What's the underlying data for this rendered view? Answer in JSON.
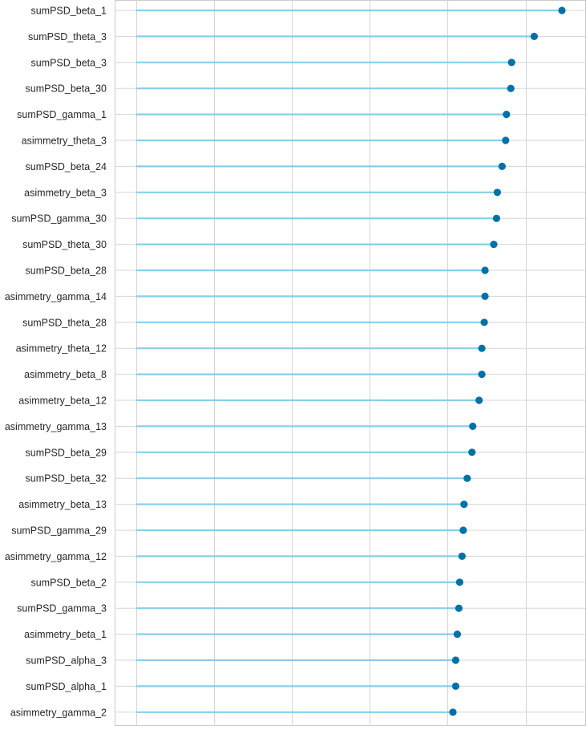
{
  "chart_data": {
    "type": "lollipop",
    "orientation": "horizontal",
    "title": "",
    "xlabel": "",
    "ylabel": "",
    "xlim": [
      0,
      1
    ],
    "grid": true,
    "colors": {
      "stem": "#87ceeb",
      "marker": "#0072a8",
      "grid": "#d5d5d5",
      "frame": "#cccccc",
      "label": "#262626"
    },
    "categories": [
      "sumPSD_beta_1",
      "sumPSD_theta_3",
      "sumPSD_beta_3",
      "sumPSD_beta_30",
      "sumPSD_gamma_1",
      "asimmetry_theta_3",
      "sumPSD_beta_24",
      "asimmetry_beta_3",
      "sumPSD_gamma_30",
      "sumPSD_theta_30",
      "sumPSD_beta_28",
      "asimmetry_gamma_14",
      "sumPSD_theta_28",
      "asimmetry_theta_12",
      "asimmetry_beta_8",
      "asimmetry_beta_12",
      "asimmetry_gamma_13",
      "sumPSD_beta_29",
      "sumPSD_beta_32",
      "asimmetry_beta_13",
      "sumPSD_gamma_29",
      "asimmetry_gamma_12",
      "sumPSD_beta_2",
      "sumPSD_gamma_3",
      "asimmetry_beta_1",
      "sumPSD_alpha_3",
      "sumPSD_alpha_1",
      "asimmetry_gamma_2"
    ],
    "values": [
      0.946,
      0.876,
      0.819,
      0.817,
      0.806,
      0.804,
      0.795,
      0.783,
      0.781,
      0.774,
      0.752,
      0.752,
      0.75,
      0.744,
      0.744,
      0.737,
      0.721,
      0.719,
      0.707,
      0.699,
      0.697,
      0.694,
      0.688,
      0.686,
      0.682,
      0.678,
      0.678,
      0.671
    ]
  }
}
